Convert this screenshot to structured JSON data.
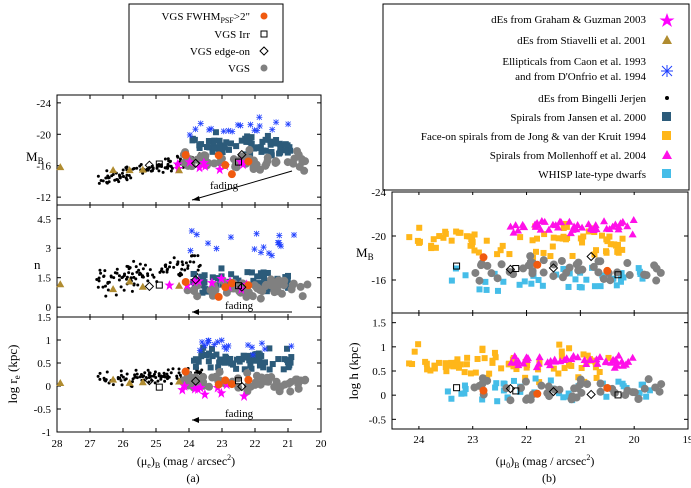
{
  "colors": {
    "vgs": "#808080",
    "vgs_fwhm": "#f05a0f",
    "graham": "#ff00ff",
    "stiavelli": "#b08c30",
    "caon": "#1f3fff",
    "bingelli": "#000000",
    "jansen": "#2c5b7a",
    "dejong": "#ffb619",
    "mollenhoff": "#ff10e8",
    "whisp": "#45bde8"
  },
  "legend_a": {
    "items": [
      {
        "label": "VGS FWHM_PSF>2\"",
        "label_main": "VGS FWHM",
        "label_sub": "PSF",
        "label_tail": ">2\"",
        "marker": "filled-circle",
        "color": "#f05a0f"
      },
      {
        "label": "VGS Irr",
        "marker": "open-square",
        "color": "#000000"
      },
      {
        "label": "VGS edge-on",
        "marker": "open-diamond",
        "color": "#000000"
      },
      {
        "label": "VGS",
        "marker": "filled-circle",
        "color": "#808080"
      }
    ]
  },
  "legend_b": {
    "items": [
      {
        "label": "dEs from Graham & Guzman 2003",
        "marker": "star",
        "color": "#ff00ff"
      },
      {
        "label": "dEs from Stiavelli et al. 2001",
        "marker": "triangle",
        "color": "#b08c30"
      },
      {
        "label": "Ellipticals from Caon et al. 1993",
        "label2": "and from D'Onfrio et al. 1994",
        "marker": "asterisk",
        "color": "#1f3fff"
      },
      {
        "label": "dEs from Bingelli  Jerjen",
        "marker": "dot",
        "color": "#000000"
      },
      {
        "label": "Spirals from Jansen et al. 2000",
        "marker": "square",
        "color": "#2c5b7a"
      },
      {
        "label": "Face-on spirals from de Jong & van der Kruit 1994",
        "marker": "square",
        "color": "#ffb619"
      },
      {
        "label": "Spirals from Mollenhoff et al. 2004",
        "marker": "triangle",
        "color": "#ff10e8"
      },
      {
        "label": "WHISP late-type dwarfs",
        "marker": "square",
        "color": "#45bde8"
      }
    ]
  },
  "chart_data": [
    {
      "panel": "(a)",
      "type": "scatter",
      "title": "",
      "xlabel": "(μe)B (mag / arcsec2)",
      "xlabel_main": "(μ",
      "xlabel_sub1": "e",
      "xlabel_mid": ")",
      "xlabel_sub2": "B",
      "xlabel_tail": " (mag / arcsec",
      "xlabel_sup": "2",
      "xlabel_end": ")",
      "xlim": [
        28,
        20
      ],
      "xticks": [
        "28",
        "27",
        "26",
        "25",
        "24",
        "23",
        "22",
        "21",
        "20"
      ],
      "subplots": [
        {
          "ylabel": "MB",
          "ylabel_main": "M",
          "ylabel_sub": "B",
          "ylim": [
            -11,
            -25
          ],
          "yticks": [
            "-24",
            "-20",
            "-16",
            "-12"
          ],
          "ytick_values": [
            -24,
            -20,
            -16,
            -12
          ],
          "annotation": "fading"
        },
        {
          "ylabel": "n",
          "ylim": [
            -0.5,
            5.2
          ],
          "yticks": [
            "4.5",
            "3",
            "1.5",
            "0"
          ],
          "ytick_values": [
            4.5,
            3,
            1.5,
            0
          ],
          "annotation": "fading"
        },
        {
          "ylabel": "log re (kpc)",
          "ylabel_main": "log r",
          "ylabel_sub": "e",
          "ylabel_tail": " (kpc)",
          "ylim": [
            -1,
            1.5
          ],
          "yticks": [
            "1.5",
            "1",
            "0.5",
            "0",
            "-0.5",
            "-1"
          ],
          "ytick_values": [
            1.5,
            1,
            0.5,
            0,
            -0.5,
            -1
          ],
          "annotation": "fading"
        }
      ]
    },
    {
      "panel": "(b)",
      "type": "scatter",
      "title": "",
      "xlabel": "(μ0)B (mag / arcsec2)",
      "xlabel_main": "(μ",
      "xlabel_sub1": "0",
      "xlabel_mid": ")",
      "xlabel_sub2": "B",
      "xlabel_tail": " (mag / arcsec",
      "xlabel_sup": "2",
      "xlabel_end": ")",
      "xlim": [
        24.5,
        19
      ],
      "xticks": [
        "24",
        "23",
        "22",
        "21",
        "20",
        "19"
      ],
      "subplots": [
        {
          "ylabel": "MB",
          "ylabel_main": "M",
          "ylabel_sub": "B",
          "ylim": [
            -13,
            -24
          ],
          "yticks": [
            "-24",
            "-20",
            "-16"
          ],
          "ytick_values": [
            -24,
            -20,
            -16
          ]
        },
        {
          "ylabel": "log h (kpc)",
          "ylim": [
            -0.7,
            1.7
          ],
          "yticks": [
            "1.5",
            "1",
            "0.5",
            "0",
            "-0.5"
          ],
          "ytick_values": [
            1.5,
            1,
            0.5,
            0,
            -0.5
          ]
        }
      ]
    }
  ],
  "captions": {
    "a": "(a)",
    "b": "(b)"
  }
}
